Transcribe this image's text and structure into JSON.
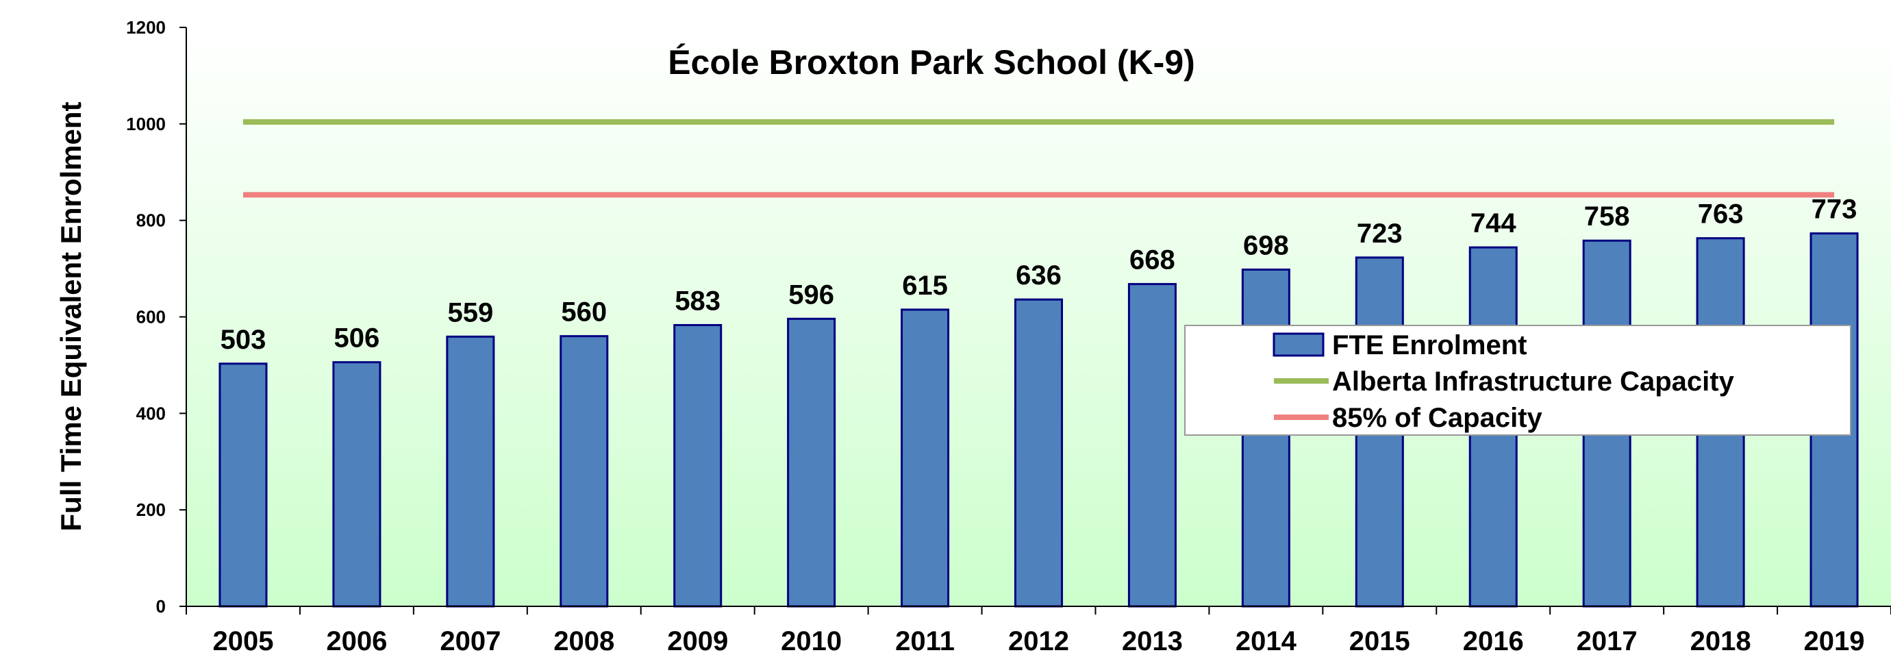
{
  "chart_data": {
    "type": "bar",
    "title": "École Broxton Park School (K-9)",
    "xlabel": "",
    "ylabel": "Full Time Equivalent  Enrolment",
    "ylim": [
      0,
      1200
    ],
    "yticks": [
      0,
      200,
      400,
      600,
      800,
      1000,
      1200
    ],
    "categories": [
      "2005",
      "2006",
      "2007",
      "2008",
      "2009",
      "2010",
      "2011",
      "2012",
      "2013",
      "2014",
      "2015",
      "2016",
      "2017",
      "2018",
      "2019"
    ],
    "series": [
      {
        "name": "FTE Enrolment",
        "kind": "bar",
        "color": "#4F81BD",
        "border": "#000080",
        "values": [
          503,
          506,
          559,
          560,
          583,
          596,
          615,
          636,
          668,
          698,
          723,
          744,
          758,
          763,
          773
        ]
      },
      {
        "name": "Alberta Infrastructure Capacity",
        "kind": "line",
        "color": "#9BBB59",
        "values": [
          1004,
          1004,
          1004,
          1004,
          1004,
          1004,
          1004,
          1004,
          1004,
          1004,
          1004,
          1004,
          1004,
          1004,
          1004
        ]
      },
      {
        "name": "85% of Capacity",
        "kind": "line",
        "color": "#F08080",
        "values": [
          853,
          853,
          853,
          853,
          853,
          853,
          853,
          853,
          853,
          853,
          853,
          853,
          853,
          853,
          853
        ]
      }
    ],
    "data_labels": [
      "503",
      "506",
      "559",
      "560",
      "583",
      "596",
      "615",
      "636",
      "668",
      "698",
      "723",
      "744",
      "758",
      "763",
      "773"
    ],
    "legend": {
      "placement": "right-middle"
    },
    "grid": false,
    "background": {
      "top": "#ffffff",
      "bottom": "#ccffcc"
    }
  }
}
